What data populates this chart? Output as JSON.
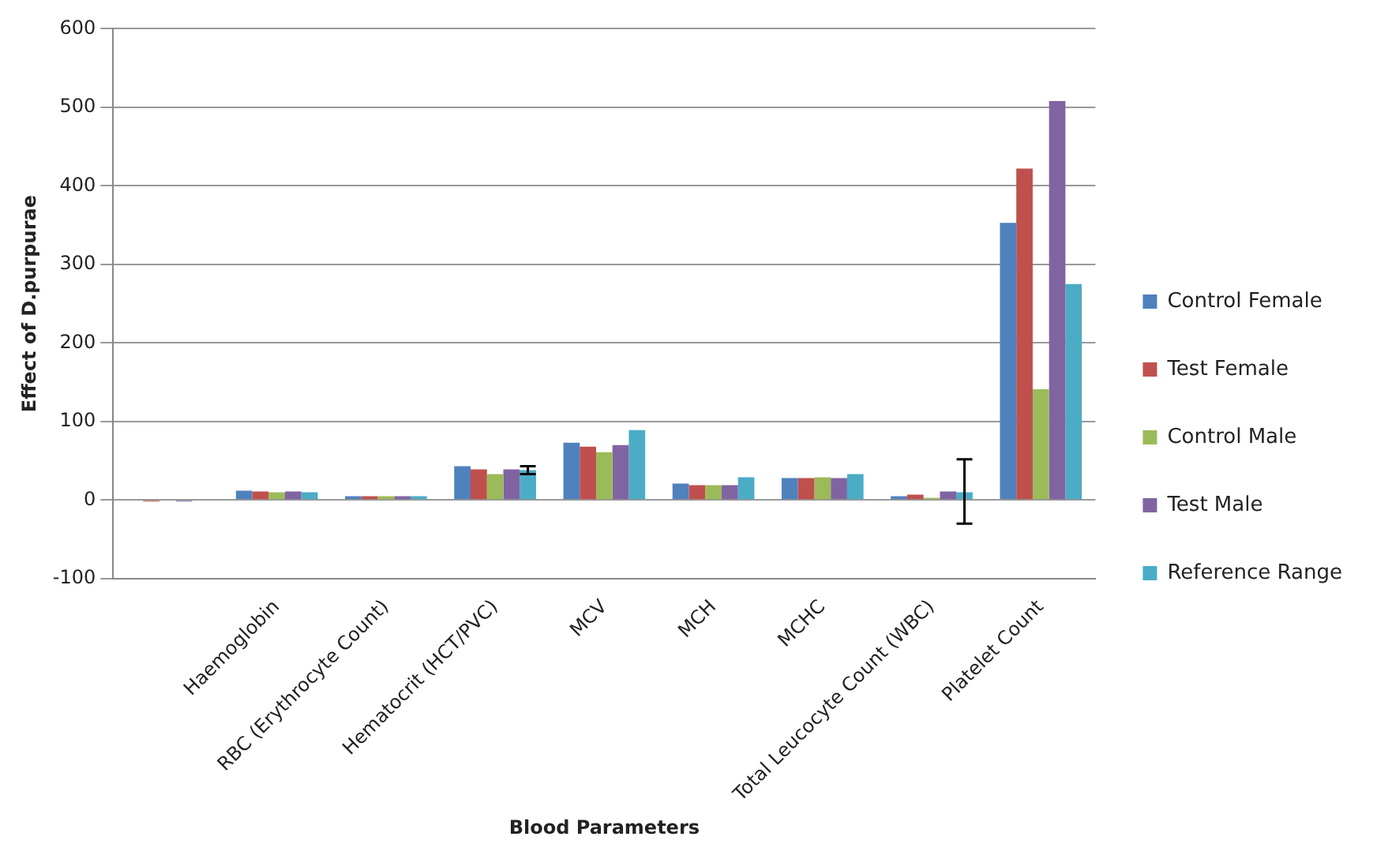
{
  "chart_data": {
    "type": "bar",
    "xlabel": "Blood Parameters",
    "ylabel": "Effect of D.purpurae",
    "categories": [
      null,
      "Haemoglobin",
      "RBC (Erythrocyte Count)",
      "Hematocrit (HCT/PVC)",
      "MCV",
      "MCH",
      "MCHC",
      "Total Leucocyte Count (WBC)",
      "Platelet Count"
    ],
    "series": [
      {
        "name": "Control Female",
        "color": "#4f81bd",
        "values": [
          null,
          12,
          5,
          43,
          73,
          21,
          28,
          5,
          353
        ]
      },
      {
        "name": "Test Female",
        "color": "#c0504d",
        "values": [
          -2,
          11,
          5,
          39,
          68,
          19,
          28,
          7,
          422
        ]
      },
      {
        "name": "Control Male",
        "color": "#9bbb59",
        "values": [
          null,
          10,
          5,
          33,
          61,
          19,
          29,
          3,
          141
        ]
      },
      {
        "name": "Test Male",
        "color": "#8064a2",
        "values": [
          -2,
          11,
          5,
          39,
          70,
          19,
          28,
          11,
          508
        ]
      },
      {
        "name": "Reference Range",
        "color": "#4bacc6",
        "values": [
          null,
          10,
          5,
          38,
          89,
          29,
          33,
          10,
          275
        ],
        "errors": [
          null,
          null,
          null,
          5,
          null,
          null,
          null,
          [
            -30,
            52
          ],
          null
        ]
      }
    ],
    "ylim": [
      -100,
      600
    ],
    "yticks": [
      -100,
      0,
      100,
      200,
      300,
      400,
      500,
      600
    ],
    "grid": "y",
    "legend": "right"
  }
}
